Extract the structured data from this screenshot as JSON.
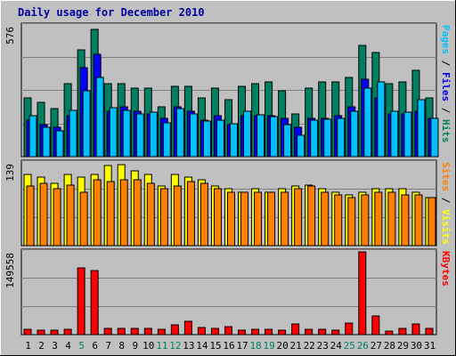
{
  "chart_data": {
    "type": "bar",
    "title": "Daily usage for December 2010",
    "categories": [
      "1",
      "2",
      "3",
      "4",
      "5",
      "6",
      "7",
      "8",
      "9",
      "10",
      "11",
      "12",
      "13",
      "14",
      "15",
      "16",
      "17",
      "18",
      "19",
      "20",
      "21",
      "22",
      "23",
      "24",
      "25",
      "26",
      "27",
      "28",
      "29",
      "30",
      "31"
    ],
    "weekend_days": [
      "5",
      "11",
      "12",
      "18",
      "19",
      "25",
      "26"
    ],
    "panels": [
      {
        "max_label": "576",
        "ymax": 576,
        "right_labels": [
          {
            "text": "Pages",
            "color": "#00c0ff"
          },
          {
            "text": " / ",
            "color": "#000000"
          },
          {
            "text": "Files",
            "color": "#0000ff"
          },
          {
            "text": " / ",
            "color": "#000000"
          },
          {
            "text": "Hits",
            "color": "#008060"
          }
        ],
        "series": [
          {
            "name": "Hits",
            "color": "#008060",
            "values": [
              260,
              240,
              210,
              320,
              470,
              560,
              320,
              320,
              300,
              300,
              220,
              310,
              310,
              260,
              300,
              250,
              310,
              320,
              330,
              290,
              190,
              300,
              330,
              330,
              350,
              490,
              460,
              320,
              330,
              380,
              260
            ]
          },
          {
            "name": "Files",
            "color": "#0000ff",
            "values": [
              160,
              140,
              130,
              180,
              390,
              450,
              200,
              220,
              200,
              190,
              170,
              220,
              200,
              160,
              180,
              140,
              180,
              180,
              180,
              170,
              130,
              170,
              170,
              180,
              220,
              340,
              260,
              190,
              190,
              200,
              170
            ]
          },
          {
            "name": "Pages",
            "color": "#00c0ff",
            "values": [
              180,
              130,
              115,
              205,
              290,
              350,
              215,
              205,
              190,
              195,
              150,
              210,
              190,
              155,
              160,
              145,
              200,
              185,
              175,
              140,
              95,
              160,
              165,
              170,
              200,
              300,
              330,
              200,
              195,
              250,
              170
            ]
          }
        ]
      },
      {
        "max_label": "139",
        "ymax": 139,
        "right_labels": [
          {
            "text": "Sites",
            "color": "#ff8000"
          },
          {
            "text": " / ",
            "color": "#000000"
          },
          {
            "text": "Visits",
            "color": "#ffff00"
          }
        ],
        "series": [
          {
            "name": "Visits",
            "color": "#ffff00",
            "values": [
              120,
              115,
              105,
              120,
              115,
              120,
              135,
              136,
              125,
              120,
              100,
              120,
              115,
              110,
              100,
              95,
              90,
              95,
              90,
              95,
              100,
              102,
              95,
              90,
              85,
              90,
              95,
              95,
              95,
              90,
              80
            ]
          },
          {
            "name": "Sites",
            "color": "#ff8000",
            "values": [
              100,
              105,
              95,
              102,
              90,
              110,
              108,
              110,
              110,
              105,
              95,
              100,
              108,
              105,
              95,
              90,
              90,
              90,
              90,
              90,
              95,
              100,
              90,
              85,
              80,
              85,
              90,
              90,
              85,
              85,
              80
            ]
          }
        ]
      },
      {
        "max_label": "149558",
        "ymax": 149558,
        "right_labels": [
          {
            "text": "KBytes",
            "color": "#ff0000"
          }
        ],
        "series": [
          {
            "name": "KBytes",
            "color": "#ff0000",
            "values": [
              9000,
              8500,
              8000,
              10000,
              120000,
              116000,
              12000,
              11000,
              11000,
              11000,
              10000,
              17000,
              24000,
              13000,
              12000,
              15000,
              8000,
              9000,
              9000,
              8000,
              20000,
              9000,
              9000,
              8000,
              21000,
              149558,
              33000,
              7000,
              12000,
              19000,
              12000
            ]
          }
        ]
      }
    ]
  }
}
